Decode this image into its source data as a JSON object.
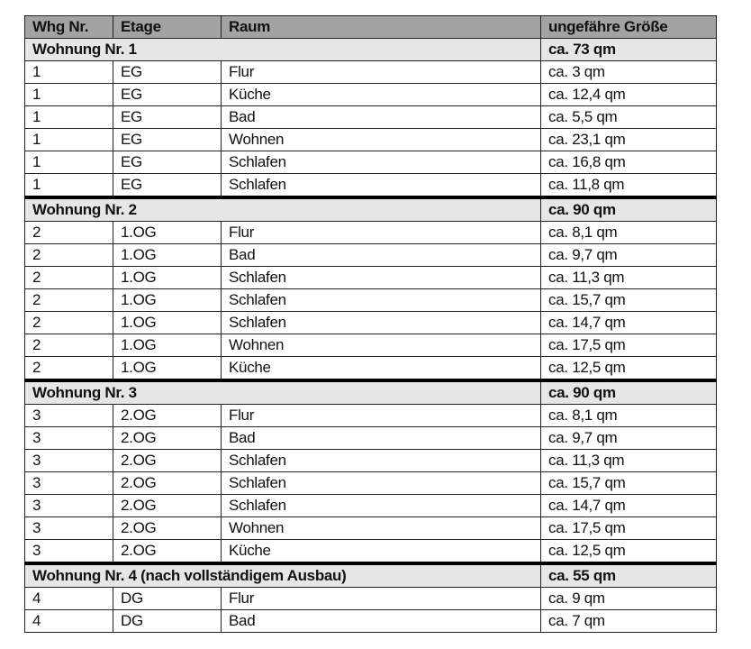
{
  "header": [
    "Whg Nr.",
    "Etage",
    "Raum",
    "ungefähre Größe"
  ],
  "groups": [
    {
      "title": "Wohnung Nr. 1",
      "size": "ca. 73 qm",
      "rows": [
        [
          "1",
          "EG",
          "Flur",
          "ca. 3 qm"
        ],
        [
          "1",
          "EG",
          "Küche",
          "ca. 12,4 qm"
        ],
        [
          "1",
          "EG",
          "Bad",
          "ca. 5,5 qm"
        ],
        [
          "1",
          "EG",
          "Wohnen",
          "ca. 23,1 qm"
        ],
        [
          "1",
          "EG",
          "Schlafen",
          "ca. 16,8 qm"
        ],
        [
          "1",
          "EG",
          "Schlafen",
          "ca. 11,8 qm"
        ]
      ]
    },
    {
      "title": "Wohnung Nr. 2",
      "size": "ca. 90 qm",
      "rows": [
        [
          "2",
          "1.OG",
          "Flur",
          "ca. 8,1 qm"
        ],
        [
          "2",
          "1.OG",
          "Bad",
          "ca. 9,7 qm"
        ],
        [
          "2",
          "1.OG",
          "Schlafen",
          "ca. 11,3 qm"
        ],
        [
          "2",
          "1.OG",
          "Schlafen",
          "ca. 15,7 qm"
        ],
        [
          "2",
          "1.OG",
          "Schlafen",
          "ca. 14,7 qm"
        ],
        [
          "2",
          "1.OG",
          "Wohnen",
          "ca. 17,5 qm"
        ],
        [
          "2",
          "1.OG",
          "Küche",
          "ca. 12,5 qm"
        ]
      ]
    },
    {
      "title": "Wohnung Nr. 3",
      "size": "ca. 90 qm",
      "rows": [
        [
          "3",
          "2.OG",
          "Flur",
          "ca. 8,1 qm"
        ],
        [
          "3",
          "2.OG",
          "Bad",
          "ca. 9,7 qm"
        ],
        [
          "3",
          "2.OG",
          "Schlafen",
          "ca. 11,3 qm"
        ],
        [
          "3",
          "2.OG",
          "Schlafen",
          "ca. 15,7 qm"
        ],
        [
          "3",
          "2.OG",
          "Schlafen",
          "ca. 14,7 qm"
        ],
        [
          "3",
          "2.OG",
          "Wohnen",
          "ca. 17,5 qm"
        ],
        [
          "3",
          "2.OG",
          "Küche",
          "ca. 12,5 qm"
        ]
      ]
    },
    {
      "title": "Wohnung Nr. 4 (nach vollständigem Ausbau)",
      "size": "ca. 55 qm",
      "rows": [
        [
          "4",
          "DG",
          "Flur",
          "ca. 9 qm"
        ],
        [
          "4",
          "DG",
          "Bad",
          "ca. 7 qm"
        ]
      ]
    }
  ]
}
